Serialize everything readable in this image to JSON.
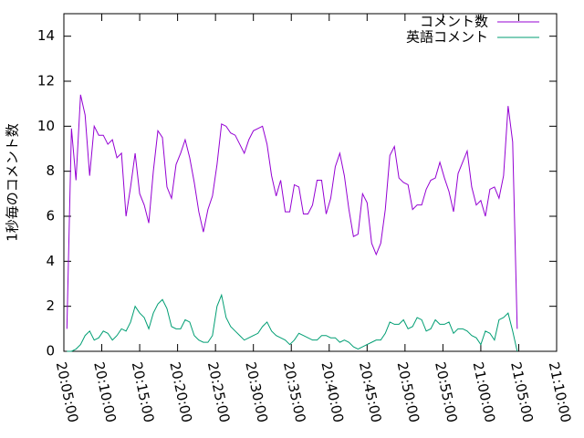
{
  "chart_data": {
    "type": "line",
    "ylabel": "1秒毎のコメント数",
    "x": [
      "20:05:24",
      "20:06:00",
      "20:06:36",
      "20:07:12",
      "20:07:48",
      "20:08:24",
      "20:09:00",
      "20:09:36",
      "20:10:12",
      "20:10:48",
      "20:11:24",
      "20:12:00",
      "20:12:36",
      "20:13:12",
      "20:13:48",
      "20:14:24",
      "20:15:00",
      "20:15:36",
      "20:16:12",
      "20:16:48",
      "20:17:24",
      "20:18:00",
      "20:18:36",
      "20:19:12",
      "20:19:48",
      "20:20:24",
      "20:21:00",
      "20:21:36",
      "20:22:12",
      "20:22:48",
      "20:23:24",
      "20:24:00",
      "20:24:36",
      "20:25:12",
      "20:25:48",
      "20:26:24",
      "20:27:00",
      "20:27:36",
      "20:28:12",
      "20:28:48",
      "20:29:24",
      "20:30:00",
      "20:30:36",
      "20:31:12",
      "20:31:48",
      "20:32:24",
      "20:33:00",
      "20:33:36",
      "20:34:12",
      "20:34:48",
      "20:35:24",
      "20:36:00",
      "20:36:36",
      "20:37:12",
      "20:37:48",
      "20:38:24",
      "20:39:00",
      "20:39:36",
      "20:40:12",
      "20:40:48",
      "20:41:24",
      "20:42:00",
      "20:42:36",
      "20:43:12",
      "20:43:48",
      "20:44:24",
      "20:45:00",
      "20:45:36",
      "20:46:12",
      "20:46:48",
      "20:47:24",
      "20:48:00",
      "20:48:36",
      "20:49:12",
      "20:49:48",
      "20:50:24",
      "20:51:00",
      "20:51:36",
      "20:52:12",
      "20:52:48",
      "20:53:24",
      "20:54:00",
      "20:54:36",
      "20:55:12",
      "20:55:48",
      "20:56:24",
      "20:57:00",
      "20:57:36",
      "20:58:12",
      "20:58:48",
      "20:59:24",
      "21:00:00",
      "21:00:36",
      "21:01:12",
      "21:01:48",
      "21:02:24",
      "21:03:00",
      "21:03:36",
      "21:04:12",
      "21:04:48"
    ],
    "series": [
      {
        "name": "コメント数",
        "color": "#9400d3",
        "values": [
          1.0,
          9.9,
          7.6,
          11.4,
          10.5,
          7.8,
          10.0,
          9.6,
          9.6,
          9.2,
          9.4,
          8.6,
          8.8,
          6.0,
          7.3,
          8.8,
          7.0,
          6.5,
          5.7,
          8.0,
          9.8,
          9.5,
          7.3,
          6.8,
          8.3,
          8.8,
          9.4,
          8.6,
          7.5,
          6.2,
          5.3,
          6.3,
          6.9,
          8.3,
          10.1,
          10.0,
          9.7,
          9.6,
          9.2,
          8.8,
          9.4,
          9.8,
          9.9,
          10.0,
          9.2,
          7.8,
          6.9,
          7.6,
          6.2,
          6.2,
          7.4,
          7.3,
          6.1,
          6.1,
          6.5,
          7.6,
          7.6,
          6.1,
          6.8,
          8.2,
          8.8,
          7.8,
          6.3,
          5.1,
          5.2,
          7.0,
          6.6,
          4.8,
          4.3,
          4.8,
          6.3,
          8.7,
          9.1,
          7.7,
          7.5,
          7.4,
          6.3,
          6.5,
          6.5,
          7.2,
          7.6,
          7.7,
          8.4,
          7.7,
          7.1,
          6.2,
          7.9,
          8.4,
          8.9,
          7.3,
          6.5,
          6.7,
          6.0,
          7.2,
          7.3,
          6.8,
          7.8,
          10.9,
          9.3,
          1.0
        ]
      },
      {
        "name": "英語コメント",
        "color": "#009e73",
        "values": [
          0,
          0,
          0.1,
          0.3,
          0.7,
          0.9,
          0.5,
          0.6,
          0.9,
          0.8,
          0.5,
          0.7,
          1.0,
          0.9,
          1.3,
          2.0,
          1.7,
          1.5,
          1.0,
          1.7,
          2.1,
          2.3,
          1.9,
          1.1,
          1.0,
          1.0,
          1.4,
          1.3,
          0.7,
          0.5,
          0.4,
          0.4,
          0.7,
          2.0,
          2.5,
          1.5,
          1.1,
          0.9,
          0.7,
          0.5,
          0.6,
          0.7,
          0.8,
          1.1,
          1.3,
          0.9,
          0.7,
          0.6,
          0.5,
          0.3,
          0.5,
          0.8,
          0.7,
          0.6,
          0.5,
          0.5,
          0.7,
          0.7,
          0.6,
          0.6,
          0.4,
          0.5,
          0.4,
          0.2,
          0.1,
          0.2,
          0.3,
          0.4,
          0.5,
          0.5,
          0.8,
          1.3,
          1.2,
          1.2,
          1.4,
          1.0,
          1.1,
          1.5,
          1.4,
          0.9,
          1.0,
          1.4,
          1.2,
          1.2,
          1.3,
          0.8,
          1.0,
          1.0,
          0.9,
          0.7,
          0.6,
          0.3,
          0.9,
          0.8,
          0.5,
          1.4,
          1.5,
          1.7,
          0.9,
          0
        ]
      }
    ],
    "xlim": [
      "20:05:00",
      "21:10:00"
    ],
    "xticks": [
      "20:05:00",
      "20:10:00",
      "20:15:00",
      "20:20:00",
      "20:25:00",
      "20:30:00",
      "20:35:00",
      "20:40:00",
      "20:45:00",
      "20:50:00",
      "20:55:00",
      "21:00:00",
      "21:05:00",
      "21:10:00"
    ],
    "ylim": [
      0,
      15
    ],
    "yticks": [
      0,
      2,
      4,
      6,
      8,
      10,
      12,
      14
    ],
    "legend": "top-right"
  }
}
